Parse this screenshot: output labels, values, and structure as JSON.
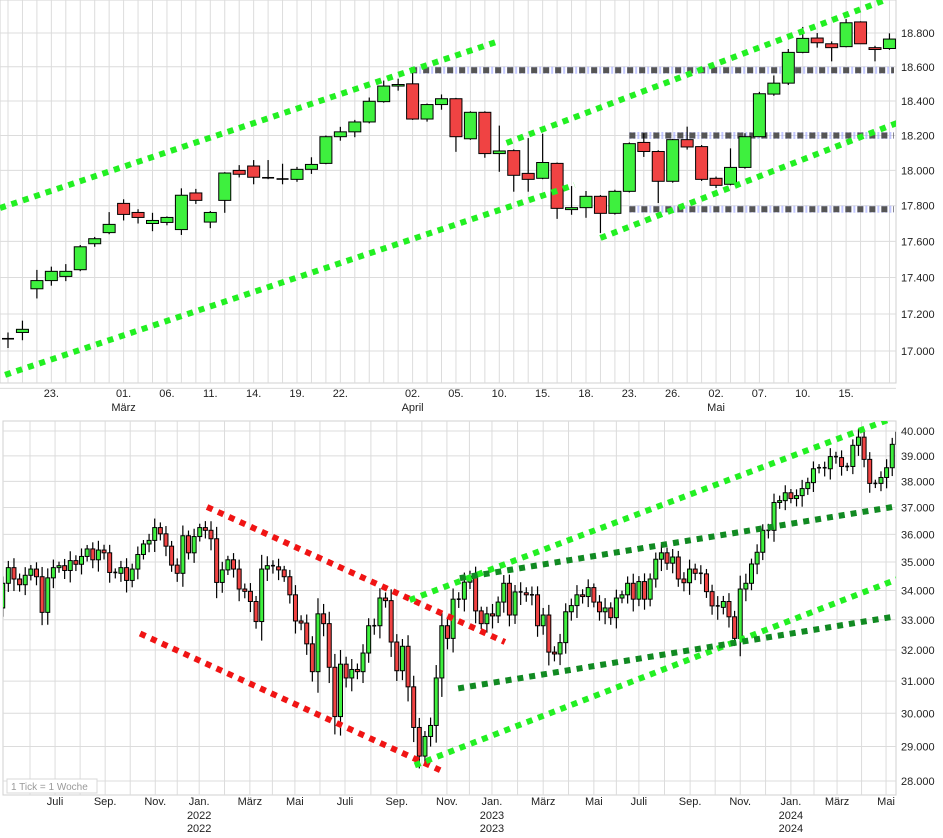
{
  "colors": {
    "up": "#3ef03e",
    "down": "#f04343",
    "grid": "#dcdcdc",
    "channel_light": "#22f022",
    "channel_dark": "#118a22",
    "channel_red": "#f01414",
    "level": "#555555",
    "level_halo": "#9aa2ff"
  },
  "chart_data": [
    {
      "type": "candlestick",
      "title": "",
      "period": "daily",
      "scale": "log",
      "ylim": [
        16830,
        19000
      ],
      "y_ticks": [
        {
          "value": 18800,
          "label": "18.800"
        },
        {
          "value": 18600,
          "label": "18.600"
        },
        {
          "value": 18400,
          "label": "18.400"
        },
        {
          "value": 18200,
          "label": "18.200"
        },
        {
          "value": 18000,
          "label": "18.000"
        },
        {
          "value": 17800,
          "label": "17.800"
        },
        {
          "value": 17600,
          "label": "17.600"
        },
        {
          "value": 17400,
          "label": "17.400"
        },
        {
          "value": 17200,
          "label": "17.200"
        },
        {
          "value": 17000,
          "label": "17.000"
        }
      ],
      "x_ticks": [
        {
          "index": 3,
          "label": "23."
        },
        {
          "index": 8,
          "label": "01.",
          "month": "März"
        },
        {
          "index": 11,
          "label": "06."
        },
        {
          "index": 14,
          "label": "11."
        },
        {
          "index": 17,
          "label": "14."
        },
        {
          "index": 20,
          "label": "19."
        },
        {
          "index": 23,
          "label": "22."
        },
        {
          "index": 28,
          "label": "02.",
          "month": "April"
        },
        {
          "index": 31,
          "label": "05."
        },
        {
          "index": 34,
          "label": "10."
        },
        {
          "index": 37,
          "label": "15."
        },
        {
          "index": 40,
          "label": "18."
        },
        {
          "index": 43,
          "label": "23."
        },
        {
          "index": 46,
          "label": "26."
        },
        {
          "index": 49,
          "label": "02.",
          "month": "Mai"
        },
        {
          "index": 52,
          "label": "07."
        },
        {
          "index": 55,
          "label": "10."
        },
        {
          "index": 58,
          "label": "15."
        }
      ],
      "ohlc": [
        [
          17066,
          17100,
          17016,
          17066
        ],
        [
          17100,
          17164,
          17058,
          17117
        ],
        [
          17338,
          17442,
          17285,
          17383
        ],
        [
          17383,
          17460,
          17355,
          17434
        ],
        [
          17406,
          17474,
          17380,
          17434
        ],
        [
          17443,
          17580,
          17435,
          17570
        ],
        [
          17587,
          17625,
          17570,
          17615
        ],
        [
          17649,
          17764,
          17640,
          17695
        ],
        [
          17813,
          17836,
          17717,
          17751
        ],
        [
          17762,
          17780,
          17700,
          17734
        ],
        [
          17700,
          17760,
          17657,
          17717
        ],
        [
          17706,
          17740,
          17690,
          17734
        ],
        [
          17666,
          17898,
          17636,
          17859
        ],
        [
          17872,
          17895,
          17810,
          17830
        ],
        [
          17708,
          17770,
          17674,
          17762
        ],
        [
          17830,
          17990,
          17760,
          17985
        ],
        [
          18000,
          18030,
          17960,
          17978
        ],
        [
          18025,
          18059,
          17921,
          17961
        ],
        [
          17958,
          18059,
          17950,
          17952
        ],
        [
          17945,
          18038,
          17921,
          17951
        ],
        [
          17949,
          18020,
          17935,
          18006
        ],
        [
          18006,
          18075,
          17980,
          18034
        ],
        [
          18040,
          18200,
          18035,
          18193
        ],
        [
          18193,
          18250,
          18170,
          18221
        ],
        [
          18221,
          18290,
          18190,
          18278
        ],
        [
          18278,
          18420,
          18270,
          18398
        ],
        [
          18396,
          18519,
          18390,
          18487
        ],
        [
          18487,
          18530,
          18460,
          18496
        ],
        [
          18500,
          18574,
          18290,
          18295
        ],
        [
          18295,
          18385,
          18280,
          18379
        ],
        [
          18379,
          18438,
          18349,
          18413
        ],
        [
          18413,
          18418,
          18106,
          18193
        ],
        [
          18181,
          18340,
          18175,
          18334
        ],
        [
          18334,
          18340,
          18072,
          18096
        ],
        [
          18096,
          18257,
          17992,
          18111
        ],
        [
          18113,
          18120,
          17879,
          17972
        ],
        [
          17983,
          18185,
          17879,
          17949
        ],
        [
          17955,
          18210,
          17950,
          18045
        ],
        [
          18040,
          18045,
          17726,
          17785
        ],
        [
          17778,
          17911,
          17749,
          17789
        ],
        [
          17789,
          17883,
          17732,
          17853
        ],
        [
          17853,
          17860,
          17647,
          17757
        ],
        [
          17757,
          17890,
          17750,
          17881
        ],
        [
          17881,
          18160,
          17875,
          18153
        ],
        [
          18160,
          18213,
          18077,
          18108
        ],
        [
          18108,
          18115,
          17815,
          17938
        ],
        [
          17938,
          18180,
          17930,
          18176
        ],
        [
          18176,
          18251,
          18119,
          18134
        ],
        [
          18136,
          18145,
          17940,
          17949
        ],
        [
          17955,
          17965,
          17900,
          17915
        ],
        [
          17921,
          18126,
          17915,
          18017
        ],
        [
          18017,
          18213,
          18010,
          18193
        ],
        [
          18193,
          18453,
          18190,
          18442
        ],
        [
          18440,
          18549,
          18430,
          18504
        ],
        [
          18504,
          18705,
          18493,
          18685
        ],
        [
          18685,
          18836,
          18680,
          18768
        ],
        [
          18770,
          18800,
          18713,
          18742
        ],
        [
          18736,
          18750,
          18632,
          18713
        ],
        [
          18719,
          18883,
          18715,
          18861
        ],
        [
          18866,
          18870,
          18736,
          18736
        ],
        [
          18713,
          18724,
          18632,
          18702
        ],
        [
          18708,
          18798,
          18700,
          18764
        ]
      ],
      "trendlines": [
        {
          "kind": "channel_light",
          "from": [
            -0.55,
            17787
          ],
          "to": [
            33.8,
            18747
          ]
        },
        {
          "kind": "channel_light",
          "from": [
            34.5,
            18157
          ],
          "to": [
            60.7,
            18997
          ]
        },
        {
          "kind": "channel_light",
          "from": [
            -0.2,
            16872
          ],
          "to": [
            39.2,
            17917
          ]
        },
        {
          "kind": "channel_light",
          "from": [
            41,
            17619
          ],
          "to": [
            61.7,
            18278
          ]
        }
      ],
      "levels": [
        {
          "value": 18580,
          "from_index": 27.9
        },
        {
          "value": 18200,
          "from_index": 43
        },
        {
          "value": 17780,
          "from_index": 43
        }
      ]
    },
    {
      "type": "candlestick",
      "title": "",
      "period": "weekly",
      "scale": "log",
      "note": "1 Tick = 1 Woche",
      "ylim": [
        27600,
        40400
      ],
      "y_ticks": [
        {
          "value": 40000,
          "label": "40.000"
        },
        {
          "value": 39000,
          "label": "39.000"
        },
        {
          "value": 38000,
          "label": "38.000"
        },
        {
          "value": 37000,
          "label": "37.000"
        },
        {
          "value": 36000,
          "label": "36.000"
        },
        {
          "value": 35000,
          "label": "35.000"
        },
        {
          "value": 34000,
          "label": "34.000"
        },
        {
          "value": 33000,
          "label": "33.000"
        },
        {
          "value": 32000,
          "label": "32.000"
        },
        {
          "value": 31000,
          "label": "31.000"
        },
        {
          "value": 30000,
          "label": "30.000"
        },
        {
          "value": 29000,
          "label": "29.000"
        },
        {
          "value": 28000,
          "label": "28.000"
        }
      ],
      "x_ticks": [
        {
          "index": 9.3,
          "label": "Juli"
        },
        {
          "index": 18.2,
          "label": "Sep."
        },
        {
          "index": 27.1,
          "label": "Nov."
        },
        {
          "index": 34.9,
          "label": "Jan.",
          "year": "2022"
        },
        {
          "index": 43.9,
          "label": "März"
        },
        {
          "index": 51.9,
          "label": "Mai"
        },
        {
          "index": 60.8,
          "label": "Juli"
        },
        {
          "index": 70.0,
          "label": "Sep."
        },
        {
          "index": 78.9,
          "label": "Nov."
        },
        {
          "index": 86.9,
          "label": "Jan.",
          "year": "2023"
        },
        {
          "index": 96.0,
          "label": "März"
        },
        {
          "index": 105.0,
          "label": "Mai"
        },
        {
          "index": 113.0,
          "label": "Juli"
        },
        {
          "index": 122.1,
          "label": "Sep."
        },
        {
          "index": 131.0,
          "label": "Nov."
        },
        {
          "index": 140.0,
          "label": "Jan.",
          "year": "2024"
        },
        {
          "index": 148.2,
          "label": "März"
        },
        {
          "index": 156.9,
          "label": "Mai"
        }
      ],
      "first_open": 33400,
      "closes": [
        34250,
        34800,
        34400,
        34200,
        34530,
        34750,
        34480,
        33250,
        34440,
        34800,
        34870,
        34700,
        35050,
        34920,
        35200,
        35470,
        35080,
        35430,
        35330,
        34630,
        34600,
        34800,
        34350,
        34750,
        35270,
        35650,
        35780,
        36250,
        36020,
        35570,
        34890,
        34600,
        35950,
        35330,
        35920,
        36250,
        36150,
        35840,
        34280,
        34720,
        35080,
        34750,
        34050,
        33970,
        33620,
        32940,
        34750,
        34870,
        34830,
        34720,
        34480,
        33850,
        32960,
        32890,
        32200,
        31300,
        33200,
        32870,
        31440,
        29900,
        31540,
        31100,
        31370,
        31300,
        31900,
        32800,
        32800,
        33740,
        33650,
        32260,
        31330,
        32120,
        30820,
        29570,
        28720,
        29300,
        29630,
        31100,
        32800,
        32380,
        33700,
        33700,
        34290,
        34500,
        33300,
        32870,
        33200,
        33130,
        33600,
        34250,
        33160,
        33950,
        33920,
        33850,
        33850,
        32800,
        33160,
        31930,
        31870,
        32240,
        33270,
        33480,
        33850,
        33790,
        34100,
        33600,
        33270,
        33400,
        33070,
        33740,
        33850,
        34250,
        33700,
        34310,
        33700,
        34400,
        35100,
        35330,
        34960,
        35180,
        34400,
        34270,
        34750,
        34600,
        34580,
        33960,
        33470,
        33420,
        33620,
        33100,
        32380,
        34050,
        34250,
        34930,
        35350,
        36150,
        36150,
        37190,
        37260,
        37560,
        37340,
        37450,
        37720,
        37950,
        38490,
        38530,
        38490,
        38970,
        38930,
        38580,
        38580,
        39420,
        39750,
        38860,
        37920,
        37920,
        38150,
        38530,
        39460,
        39950
      ],
      "trendlines": [
        {
          "kind": "channel_red",
          "from": [
            36.3,
            37020
          ],
          "to": [
            89.2,
            32260
          ]
        },
        {
          "kind": "channel_red",
          "from": [
            24.4,
            32540
          ],
          "to": [
            77.7,
            28310
          ]
        },
        {
          "kind": "channel_light",
          "from": [
            72.3,
            33670
          ],
          "to": [
            158.1,
            40530
          ]
        },
        {
          "kind": "channel_light",
          "from": [
            73.2,
            28450
          ],
          "to": [
            159.4,
            34430
          ]
        },
        {
          "kind": "channel_dark",
          "from": [
            81.2,
            34430
          ],
          "to": [
            158.1,
            37020
          ]
        },
        {
          "kind": "channel_dark",
          "from": [
            80.9,
            30770
          ],
          "to": [
            158.1,
            33100
          ]
        }
      ]
    }
  ]
}
